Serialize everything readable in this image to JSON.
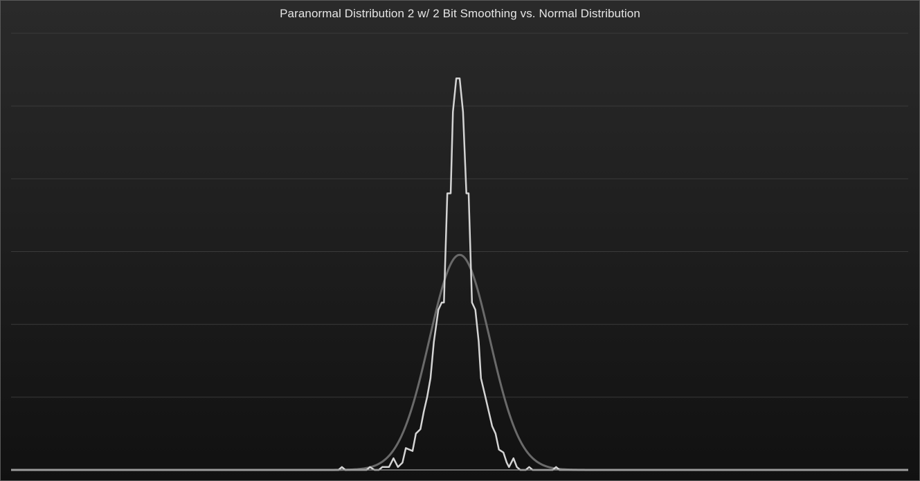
{
  "chart_data": {
    "type": "line",
    "title": "Paranormal Distribution 2 w/ 2 Bit Smoothing vs. Normal Distribution",
    "xlabel": "",
    "ylabel": "",
    "grid": true,
    "legend": "none",
    "xlim": [
      -40,
      40
    ],
    "ylim": [
      0,
      0.3
    ],
    "ytick_count": 6,
    "colors": {
      "normal": "#6a6a6a",
      "paranormal": "#d4d4d4",
      "grid": "#3a3a3a",
      "axis": "#8a8a8a"
    },
    "normal": {
      "mean": 0,
      "sd": 2.7
    },
    "series": [
      {
        "points": [
          [
            -40,
            0
          ],
          [
            -10.8,
            0
          ],
          [
            -10.5,
            0.002
          ],
          [
            -10.2,
            0
          ],
          [
            -8.3,
            0
          ],
          [
            -8,
            0.002
          ],
          [
            -7.6,
            0
          ],
          [
            -7.2,
            0
          ],
          [
            -6.9,
            0.002
          ],
          [
            -6.3,
            0.002
          ],
          [
            -5.9,
            0.008
          ],
          [
            -5.5,
            0.002
          ],
          [
            -5.1,
            0.005
          ],
          [
            -4.8,
            0.015
          ],
          [
            -4.2,
            0.013
          ],
          [
            -3.9,
            0.025
          ],
          [
            -3.5,
            0.028
          ],
          [
            -3.2,
            0.04
          ],
          [
            -2.9,
            0.05
          ],
          [
            -2.6,
            0.063
          ],
          [
            -2.3,
            0.088
          ],
          [
            -1.9,
            0.11
          ],
          [
            -1.6,
            0.115
          ],
          [
            -1.4,
            0.115
          ],
          [
            -1.1,
            0.19
          ],
          [
            -0.8,
            0.19
          ],
          [
            -0.6,
            0.246
          ],
          [
            -0.3,
            0.269
          ],
          [
            0,
            0.269
          ],
          [
            0.3,
            0.246
          ],
          [
            0.6,
            0.19
          ],
          [
            0.8,
            0.19
          ],
          [
            1.1,
            0.115
          ],
          [
            1.4,
            0.11
          ],
          [
            1.7,
            0.088
          ],
          [
            1.9,
            0.063
          ],
          [
            2.3,
            0.05
          ],
          [
            2.6,
            0.04
          ],
          [
            2.9,
            0.03
          ],
          [
            3.2,
            0.025
          ],
          [
            3.5,
            0.014
          ],
          [
            3.9,
            0.012
          ],
          [
            4.2,
            0.005
          ],
          [
            4.4,
            0.002
          ],
          [
            4.8,
            0.008
          ],
          [
            5.1,
            0.002
          ],
          [
            5.4,
            0
          ],
          [
            5.9,
            0
          ],
          [
            6.2,
            0.002
          ],
          [
            6.5,
            0
          ],
          [
            8.3,
            0
          ],
          [
            8.6,
            0.002
          ],
          [
            8.9,
            0
          ],
          [
            40,
            0
          ]
        ]
      }
    ]
  }
}
